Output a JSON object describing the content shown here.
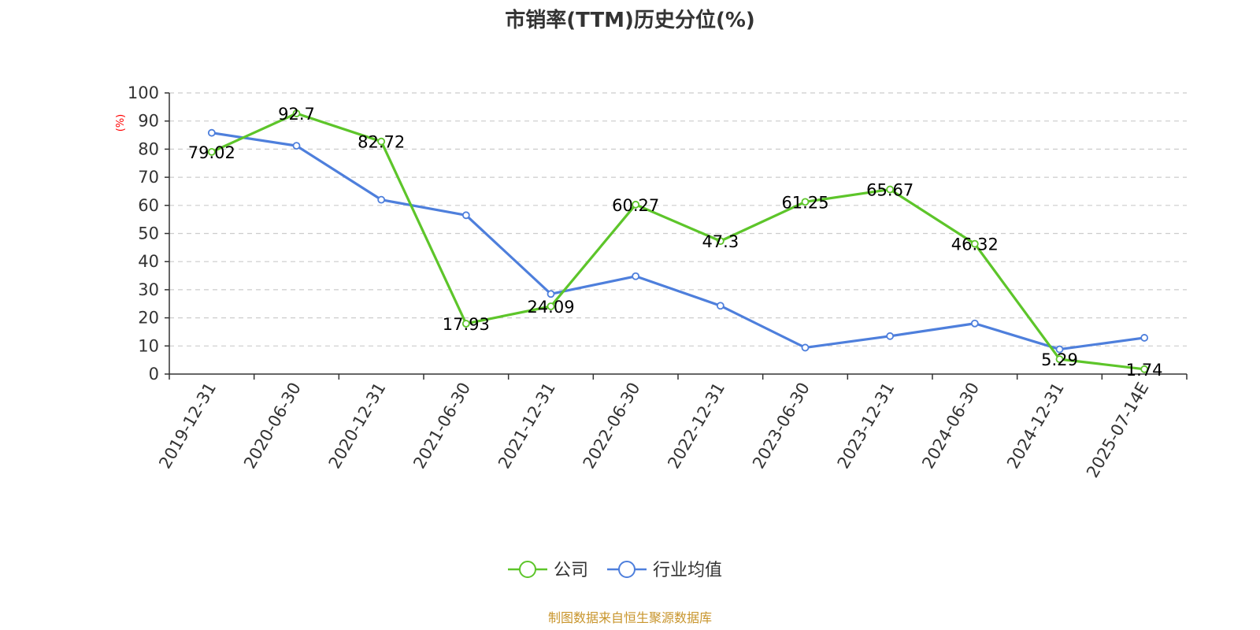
{
  "chart_data": {
    "type": "line",
    "title": "市销率(TTM)历史分位(%)",
    "ylabel": "(%)",
    "xlabel": "",
    "ylim": [
      0,
      100
    ],
    "yticks": [
      0,
      10,
      20,
      30,
      40,
      50,
      60,
      70,
      80,
      90,
      100
    ],
    "grid": true,
    "legend_position": "bottom-center",
    "categories": [
      "2019-12-31",
      "2020-06-30",
      "2020-12-31",
      "2021-06-30",
      "2021-12-31",
      "2022-06-30",
      "2022-12-31",
      "2023-06-30",
      "2023-12-31",
      "2024-06-30",
      "2024-12-31",
      "2025-07-14E"
    ],
    "series": [
      {
        "name": "公司",
        "color": "#5dc52a",
        "values": [
          79.02,
          92.7,
          82.72,
          17.93,
          24.09,
          60.27,
          47.3,
          61.25,
          65.67,
          46.32,
          5.29,
          1.74
        ],
        "labels": [
          "79.02",
          "92.7",
          "82.72",
          "17.93",
          "24.09",
          "60.27",
          "47.3",
          "61.25",
          "65.67",
          "46.32",
          "5.29",
          "1.74"
        ]
      },
      {
        "name": "行业均值",
        "color": "#4e7fdc",
        "values": [
          85.8,
          81.2,
          62.0,
          56.5,
          28.5,
          34.8,
          24.3,
          9.4,
          13.5,
          18.0,
          8.8,
          12.9
        ]
      }
    ]
  },
  "source": "制图数据来自恒生聚源数据库"
}
